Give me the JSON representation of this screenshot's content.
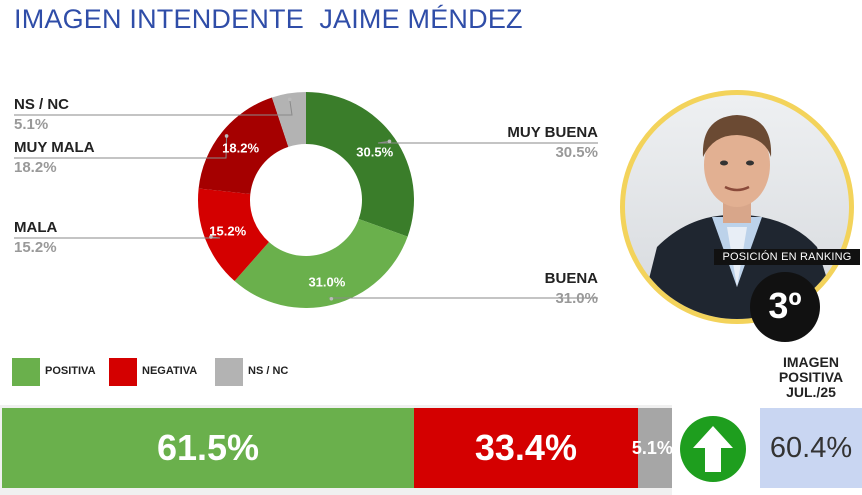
{
  "title": "IMAGEN INTENDENTE  JAIME MÉNDEZ",
  "colors": {
    "muy_buena": "#3a7d2a",
    "buena": "#6ab04c",
    "mala": "#d40000",
    "muy_mala": "#a50000",
    "nsnc": "#b3b3b3",
    "positiva": "#6ab04c",
    "negativa": "#d40000",
    "bar_nsnc": "#a6a6a6",
    "arrow_bg": "#1e9e1e",
    "photo_ring": "#f3d35b"
  },
  "chart_data": [
    {
      "type": "pie",
      "categories": [
        "MUY BUENA",
        "BUENA",
        "MALA",
        "MUY MALA",
        "NS / NC"
      ],
      "values": [
        30.5,
        31.0,
        15.2,
        18.2,
        5.1
      ],
      "value_labels": [
        "30.5%",
        "31.0%",
        "15.2%",
        "18.2%",
        ""
      ],
      "side_values": [
        "30.5%",
        "31.0%",
        "15.2%",
        "18.2%",
        "5.1%"
      ]
    },
    {
      "type": "bar",
      "categories": [
        "POSITIVA",
        "NEGATIVA",
        "NS / NC"
      ],
      "values": [
        61.5,
        33.4,
        5.1
      ],
      "value_labels": [
        "61.5%",
        "33.4%",
        "5.1%"
      ]
    }
  ],
  "ranking": {
    "caption": "POSICIÓN EN RANKING",
    "position": "3º"
  },
  "imagen_positiva": {
    "title_lines": [
      "IMAGEN",
      "POSITIVA",
      "JUL./25"
    ],
    "value": "60.4%"
  },
  "icons": {
    "trend": "arrow-up-icon",
    "photo": "person-photo"
  }
}
